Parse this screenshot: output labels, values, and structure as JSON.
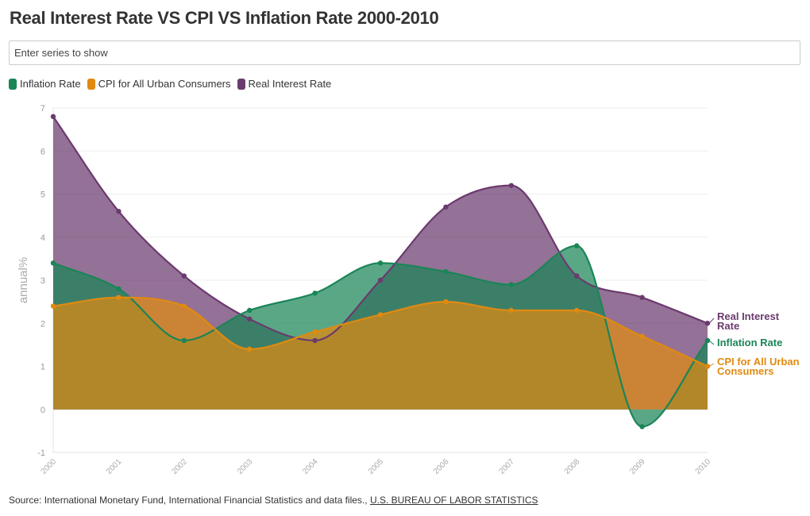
{
  "title": "Real Interest Rate VS CPI VS Inflation Rate 2000-2010",
  "search": {
    "placeholder": "Enter series to show"
  },
  "legend": [
    {
      "label": "Inflation Rate",
      "color": "#1a8557"
    },
    {
      "label": "CPI for All Urban Consumers",
      "color": "#e08a10"
    },
    {
      "label": "Real Interest Rate",
      "color": "#6b3a6e"
    }
  ],
  "source": {
    "prefix": "Source: International Monetary Fund, International Financial Statistics and data files.,",
    "link_text": "U.S. BUREAU OF LABOR STATISTICS"
  },
  "chart_data": {
    "type": "area",
    "categories": [
      "2000",
      "2001",
      "2002",
      "2003",
      "2004",
      "2005",
      "2006",
      "2007",
      "2008",
      "2009",
      "2010"
    ],
    "ylabel": "annual%",
    "ylim": [
      -1,
      7
    ],
    "yticks": [
      -1,
      0,
      1,
      2,
      3,
      4,
      5,
      6,
      7
    ],
    "grid": true,
    "series": [
      {
        "name": "Real Interest Rate",
        "end_label": [
          "Real Interest",
          "Rate"
        ],
        "color": "#6b3a6e",
        "values": [
          6.8,
          4.6,
          3.1,
          2.1,
          1.6,
          3.0,
          4.7,
          5.2,
          3.1,
          2.6,
          2.0
        ]
      },
      {
        "name": "Inflation Rate",
        "end_label": [
          "Inflation Rate"
        ],
        "color": "#1a8557",
        "values": [
          3.4,
          2.8,
          1.6,
          2.3,
          2.7,
          3.4,
          3.2,
          2.9,
          3.8,
          -0.4,
          1.6
        ]
      },
      {
        "name": "CPI for All Urban Consumers",
        "end_label": [
          "CPI for All Urban",
          "Consumers"
        ],
        "color": "#e08a10",
        "values": [
          2.4,
          2.6,
          2.4,
          1.4,
          1.8,
          2.2,
          2.5,
          2.3,
          2.3,
          1.7,
          1.0
        ]
      }
    ]
  }
}
